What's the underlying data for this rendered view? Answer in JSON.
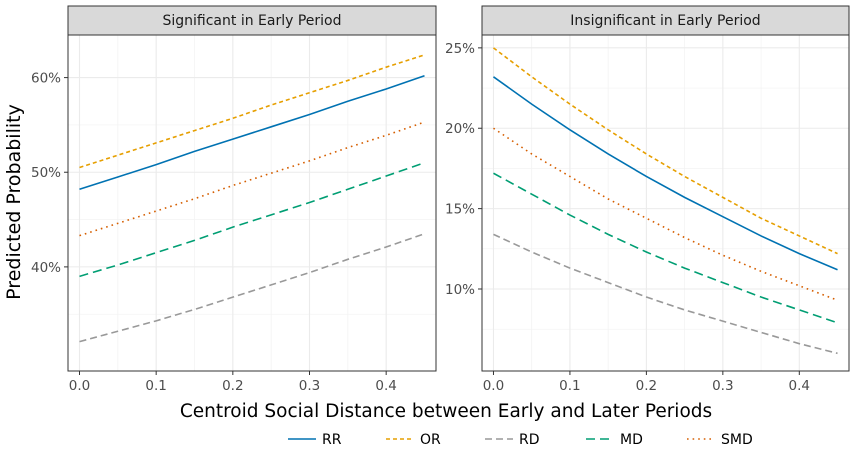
{
  "xlabel": "Centroid Social Distance between Early and Later Periods",
  "ylabel": "Predicted Probability",
  "legend": [
    {
      "name": "RR",
      "color": "#0072B2",
      "dash": "solid"
    },
    {
      "name": "OR",
      "color": "#E69F00",
      "dash": "dash-short"
    },
    {
      "name": "RD",
      "color": "#999999",
      "dash": "dash"
    },
    {
      "name": "MD",
      "color": "#009E73",
      "dash": "dash-long"
    },
    {
      "name": "SMD",
      "color": "#D55E00",
      "dash": "dot"
    }
  ],
  "chart_data": [
    {
      "type": "line",
      "title": "Significant in Early Period",
      "xlim": [
        -0.015,
        0.465
      ],
      "ylim": [
        0.29,
        0.645
      ],
      "xticks": [
        0.0,
        0.1,
        0.2,
        0.3,
        0.4
      ],
      "xtick_labels": [
        "0.0",
        "0.1",
        "0.2",
        "0.3",
        "0.4"
      ],
      "yticks": [
        0.4,
        0.5,
        0.6
      ],
      "ytick_labels": [
        "40%",
        "50%",
        "60%"
      ],
      "grid": true,
      "x": [
        0.0,
        0.05,
        0.1,
        0.15,
        0.2,
        0.25,
        0.3,
        0.35,
        0.4,
        0.45
      ],
      "series": [
        {
          "name": "RR",
          "values": [
            0.482,
            0.495,
            0.508,
            0.522,
            0.535,
            0.548,
            0.561,
            0.575,
            0.588,
            0.602
          ]
        },
        {
          "name": "OR",
          "values": [
            0.505,
            0.518,
            0.531,
            0.544,
            0.557,
            0.571,
            0.584,
            0.597,
            0.611,
            0.624
          ]
        },
        {
          "name": "RD",
          "values": [
            0.321,
            0.332,
            0.343,
            0.355,
            0.368,
            0.381,
            0.394,
            0.408,
            0.421,
            0.435
          ]
        },
        {
          "name": "MD",
          "values": [
            0.39,
            0.402,
            0.415,
            0.428,
            0.442,
            0.455,
            0.468,
            0.482,
            0.496,
            0.51
          ]
        },
        {
          "name": "SMD",
          "values": [
            0.433,
            0.446,
            0.459,
            0.472,
            0.486,
            0.499,
            0.512,
            0.526,
            0.539,
            0.553
          ]
        }
      ]
    },
    {
      "type": "line",
      "title": "Insignificant in Early Period",
      "xlim": [
        -0.015,
        0.465
      ],
      "ylim": [
        0.049,
        0.258
      ],
      "xticks": [
        0.0,
        0.1,
        0.2,
        0.3,
        0.4
      ],
      "xtick_labels": [
        "0.0",
        "0.1",
        "0.2",
        "0.3",
        "0.4"
      ],
      "yticks": [
        0.1,
        0.15,
        0.2,
        0.25
      ],
      "ytick_labels": [
        "10%",
        "15%",
        "20%",
        "25%"
      ],
      "grid": true,
      "x": [
        0.0,
        0.05,
        0.1,
        0.15,
        0.2,
        0.25,
        0.3,
        0.35,
        0.4,
        0.45
      ],
      "series": [
        {
          "name": "RR",
          "values": [
            0.232,
            0.215,
            0.199,
            0.184,
            0.17,
            0.157,
            0.145,
            0.133,
            0.122,
            0.112
          ]
        },
        {
          "name": "OR",
          "values": [
            0.25,
            0.232,
            0.215,
            0.199,
            0.184,
            0.17,
            0.157,
            0.144,
            0.133,
            0.122
          ]
        },
        {
          "name": "RD",
          "values": [
            0.134,
            0.123,
            0.113,
            0.104,
            0.095,
            0.087,
            0.08,
            0.073,
            0.066,
            0.06
          ]
        },
        {
          "name": "MD",
          "values": [
            0.172,
            0.159,
            0.146,
            0.134,
            0.123,
            0.113,
            0.104,
            0.095,
            0.087,
            0.079
          ]
        },
        {
          "name": "SMD",
          "values": [
            0.2,
            0.184,
            0.17,
            0.156,
            0.144,
            0.132,
            0.121,
            0.111,
            0.102,
            0.093
          ]
        }
      ]
    }
  ]
}
